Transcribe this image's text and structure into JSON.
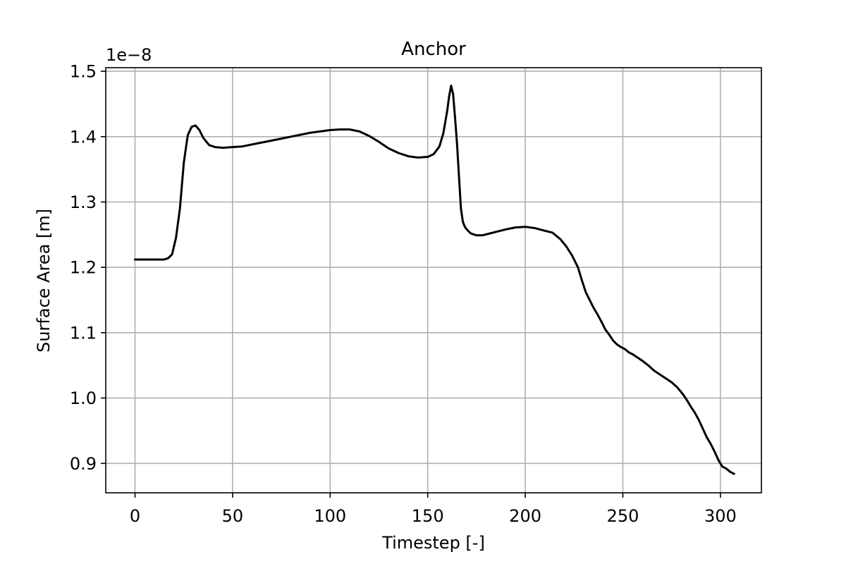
{
  "chart_data": {
    "type": "line",
    "title": "Anchor",
    "xlabel": "Timestep [-]",
    "ylabel": "Surface Area [m]",
    "y_offset_label": "1e−8",
    "xlim": [
      -15,
      321
    ],
    "ylim": [
      0.855,
      1.5055
    ],
    "x_ticks": [
      0,
      50,
      100,
      150,
      200,
      250,
      300
    ],
    "x_tick_labels": [
      "0",
      "50",
      "100",
      "150",
      "200",
      "250",
      "300"
    ],
    "y_ticks": [
      0.9,
      1.0,
      1.1,
      1.2,
      1.3,
      1.4,
      1.5
    ],
    "y_tick_labels": [
      "0.9",
      "1.0",
      "1.1",
      "1.2",
      "1.3",
      "1.4",
      "1.5"
    ],
    "grid": true,
    "line_color": "#000000",
    "grid_color": "#b0b0b0",
    "series": [
      {
        "x": [
          0,
          5,
          10,
          15,
          17,
          19,
          21,
          23,
          25,
          27,
          29,
          31,
          33,
          35,
          38,
          41,
          45,
          50,
          55,
          60,
          65,
          70,
          75,
          80,
          85,
          90,
          95,
          100,
          105,
          110,
          115,
          120,
          125,
          130,
          135,
          140,
          145,
          150,
          153,
          156,
          158,
          160,
          161,
          162,
          163,
          164,
          165,
          166,
          167,
          168,
          169,
          170,
          172,
          175,
          178,
          182,
          186,
          190,
          195,
          200,
          205,
          210,
          214,
          218,
          221,
          224,
          227,
          229,
          231,
          233,
          235,
          237,
          239,
          241,
          243,
          245,
          247,
          249,
          251,
          253,
          255,
          257,
          260,
          263,
          266,
          269,
          272,
          275,
          278,
          281,
          283,
          285,
          287,
          289,
          291,
          293,
          295,
          297,
          299,
          301,
          303,
          305,
          307
        ],
        "y": [
          1.212,
          1.212,
          1.212,
          1.212,
          1.214,
          1.22,
          1.245,
          1.29,
          1.36,
          1.402,
          1.415,
          1.417,
          1.41,
          1.398,
          1.387,
          1.384,
          1.383,
          1.384,
          1.385,
          1.388,
          1.391,
          1.394,
          1.397,
          1.4,
          1.403,
          1.406,
          1.408,
          1.41,
          1.411,
          1.411,
          1.408,
          1.401,
          1.392,
          1.382,
          1.375,
          1.37,
          1.368,
          1.369,
          1.373,
          1.385,
          1.405,
          1.44,
          1.462,
          1.478,
          1.465,
          1.43,
          1.39,
          1.34,
          1.29,
          1.27,
          1.262,
          1.258,
          1.252,
          1.249,
          1.249,
          1.252,
          1.255,
          1.258,
          1.261,
          1.262,
          1.26,
          1.256,
          1.253,
          1.243,
          1.232,
          1.218,
          1.2,
          1.18,
          1.162,
          1.15,
          1.138,
          1.128,
          1.117,
          1.105,
          1.097,
          1.088,
          1.082,
          1.078,
          1.075,
          1.07,
          1.067,
          1.063,
          1.057,
          1.05,
          1.042,
          1.036,
          1.03,
          1.024,
          1.016,
          1.005,
          0.996,
          0.986,
          0.977,
          0.966,
          0.953,
          0.94,
          0.93,
          0.918,
          0.905,
          0.895,
          0.892,
          0.887,
          0.884
        ]
      }
    ]
  }
}
